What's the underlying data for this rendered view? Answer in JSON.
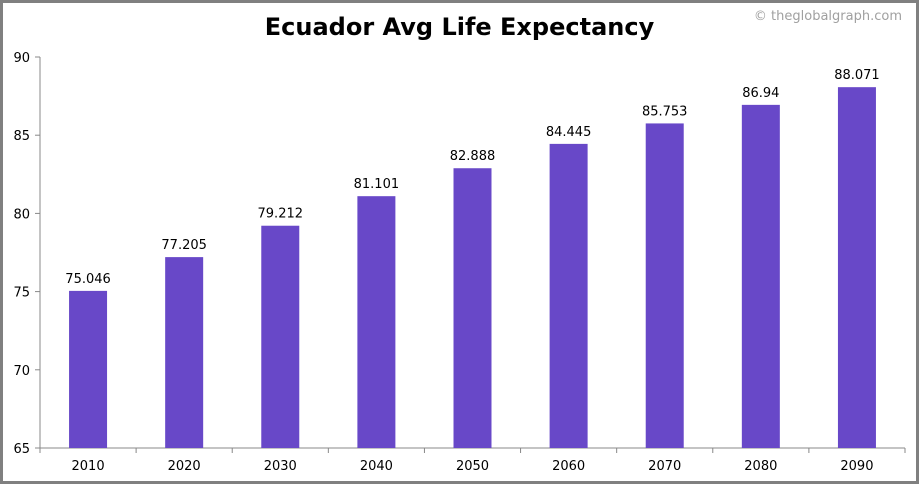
{
  "chart_data": {
    "type": "bar",
    "title": "Ecuador Avg Life Expectancy",
    "credit": "© theglobalgraph.com",
    "categories": [
      "2010",
      "2020",
      "2030",
      "2040",
      "2050",
      "2060",
      "2070",
      "2080",
      "2090"
    ],
    "values": [
      75.046,
      77.205,
      79.212,
      81.101,
      82.888,
      84.445,
      85.753,
      86.94,
      88.071
    ],
    "value_labels": [
      "75.046",
      "77.205",
      "79.212",
      "81.101",
      "82.888",
      "84.445",
      "85.753",
      "86.94",
      "88.071"
    ],
    "ylim": [
      65,
      90
    ],
    "yticks": [
      65,
      70,
      75,
      80,
      85,
      90
    ],
    "xlabel": "",
    "ylabel": "",
    "grid": false,
    "bar_color": "#6848C8"
  }
}
